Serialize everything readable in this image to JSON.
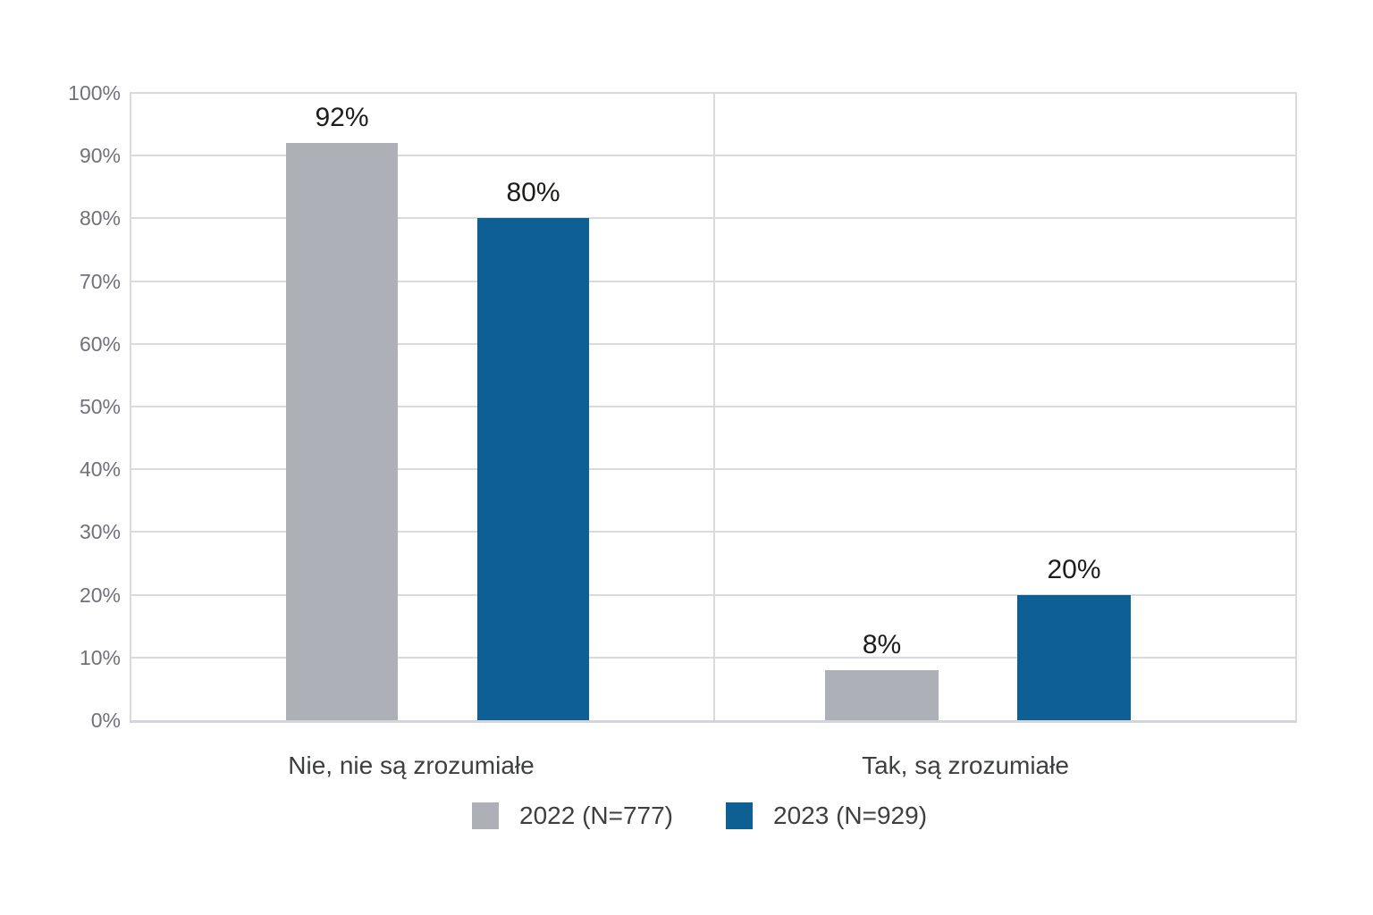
{
  "chart_data": {
    "type": "bar",
    "title": "",
    "xlabel": "",
    "ylabel": "",
    "categories": [
      "Nie, nie są zrozumiałe",
      "Tak, są zrozumiałe"
    ],
    "series": [
      {
        "name": "2022 (N=777)",
        "values": [
          92,
          8
        ],
        "labels": [
          "92%",
          "8%"
        ],
        "color": "#aeb0b7"
      },
      {
        "name": "2023 (N=929)",
        "values": [
          80,
          20
        ],
        "labels": [
          "80%",
          "20%"
        ],
        "color": "#0e5f94"
      }
    ],
    "ylim": [
      0,
      100
    ],
    "y_tick_step": 10,
    "y_tick_labels": [
      "0%",
      "10%",
      "20%",
      "30%",
      "40%",
      "50%",
      "60%",
      "70%",
      "80%",
      "90%",
      "100%"
    ],
    "grid": {
      "horizontal": true,
      "category_dividers": true,
      "plot_border_left_right": true
    },
    "legend_position": "bottom-center"
  },
  "colors": {
    "background": "#ffffff",
    "gridline": "#d9dade",
    "axis_baseline": "#d4d5da",
    "tick_label": "#70717a",
    "category_label": "#3e3f41",
    "legend_label": "#3e3f41",
    "data_label": "#1d1d1b",
    "series_2022": "#aeb0b7",
    "series_2023": "#0e5f94"
  }
}
